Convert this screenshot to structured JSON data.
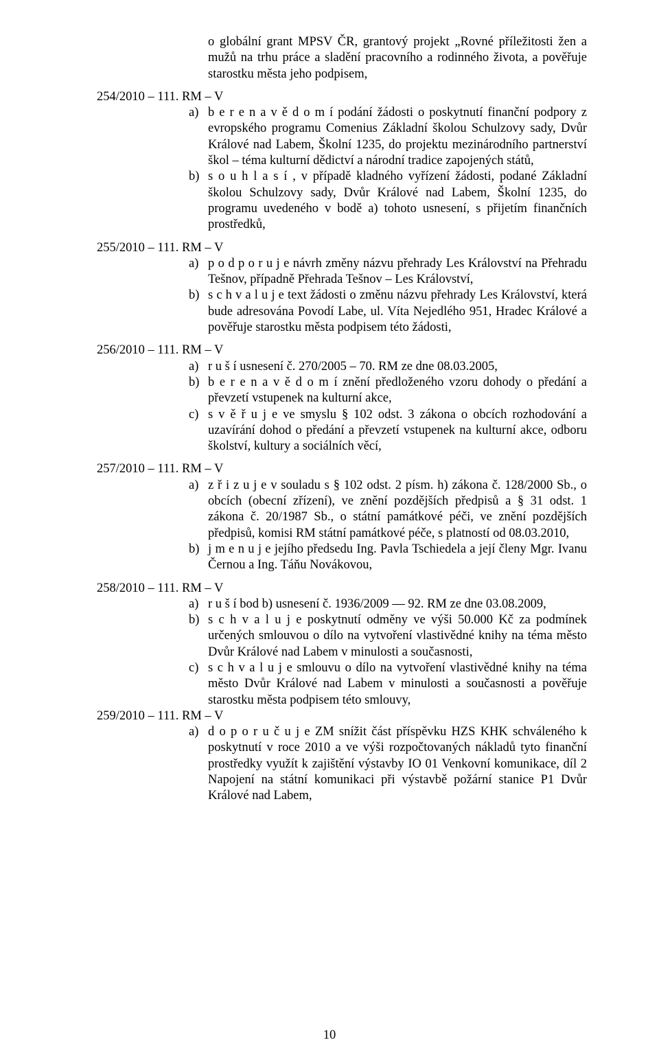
{
  "intro": {
    "text": "o globální grant MPSV ČR, grantový projekt „Rovné příležitosti žen a mužů na trhu práce a sladění pracovního a rodinného života, a pověřuje starostku města jeho podpisem,"
  },
  "res254": {
    "header": "254/2010 – 111. RM – V",
    "a": "b e r e   n a   v ě d o m í  podání žádosti o poskytnutí finanční podpory z evropského programu Comenius Základní školou Schulzovy sady, Dvůr Králové nad Labem, Školní 1235, do projektu mezinárodního partnerství škol – téma kulturní dědictví a národní tradice zapojených států,",
    "b": "s o u h l a s í , v případě kladného vyřízení žádosti, podané Základní školou Schulzovy sady, Dvůr Králové nad Labem, Školní 1235, do programu uvedeného v bodě a) tohoto usnesení, s přijetím finančních prostředků,"
  },
  "res255": {
    "header": "255/2010 – 111. RM – V",
    "a": "p o d p o r u j e  návrh změny názvu přehrady Les Království na Přehradu Tešnov, případně Přehrada Tešnov – Les Království,",
    "b": "s c h v a l u j e  text žádosti o změnu názvu přehrady Les Království, která bude adresována Povodí Labe, ul. Víta Nejedlého 951, Hradec Králové a pověřuje starostku města podpisem této žádosti,"
  },
  "res256": {
    "header": "256/2010 – 111. RM – V",
    "a": "r u š í  usnesení č. 270/2005 – 70. RM ze dne 08.03.2005,",
    "b": "b e r e   n a   v ě d o m í   znění předloženého vzoru dohody o  předání a převzetí vstupenek na kulturní akce,",
    "c": "s v ě ř u j e  ve smyslu § 102 odst. 3 zákona o obcích rozhodování a uzavírání dohod o předání a převzetí vstupenek na kulturní akce, odboru školství, kultury a sociálních věcí,"
  },
  "res257": {
    "header": "257/2010 – 111. RM – V",
    "a": "z ř i z u j e  v souladu s § 102 odst. 2 písm. h) zákona č. 128/2000 Sb., o obcích (obecní zřízení), ve znění pozdějších předpisů a § 31 odst. 1 zákona č. 20/1987 Sb., o státní památkové péči, ve znění pozdějších předpisů, komisi RM státní památkové péče, s platností od 08.03.2010,",
    "b": "j m e n u j e  jejího předsedu Ing. Pavla Tschiedela a její členy Mgr. Ivanu Černou a Ing. Táňu Novákovou,"
  },
  "res258": {
    "header": "258/2010 – 111. RM – V",
    "a": "r u š í  bod b) usnesení č. 1936/2009 — 92. RM ze dne 03.08.2009,",
    "b": "s c h v a l u j e  poskytnutí odměny ve výši 50.000 Kč za podmínek určených smlouvou o dílo na vytvoření vlastivědné knihy na téma město Dvůr Králové nad Labem v minulosti a současnosti,",
    "c": "s c h v a l u j e  smlouvu o dílo na vytvoření vlastivědné knihy na téma město Dvůr Králové nad Labem v minulosti a současnosti a pověřuje starostku města podpisem této smlouvy,"
  },
  "res259": {
    "header": "259/2010 – 111. RM – V",
    "a": "d o p o r u č u j e  ZM snížit část příspěvku HZS KHK schváleného k poskytnutí v roce 2010 a ve výši rozpočtovaných nákladů tyto finanční prostředky využít k zajištění výstavby IO 01 Venkovní komunikace, díl 2 Napojení na státní komunikaci při výstavbě požární stanice P1 Dvůr Králové nad Labem,"
  },
  "labels": {
    "a": "a)",
    "b": "b)",
    "c": "c)"
  },
  "pageNumber": "10"
}
